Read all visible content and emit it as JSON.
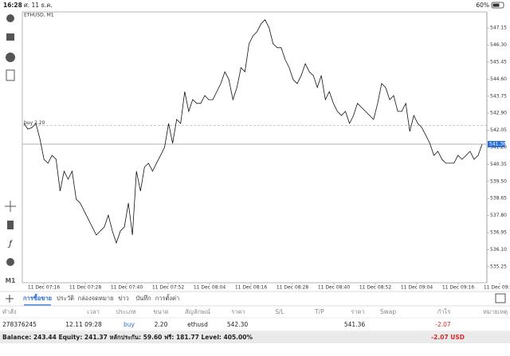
{
  "status_bar": {
    "time": "16:28",
    "date": "ศ. 11 ธ.ค.",
    "battery": "60%"
  },
  "toolbar": {
    "timeframe": "M1"
  },
  "chart_data": {
    "type": "line",
    "title": "ETHUSD, M1",
    "color": "#111111",
    "values": [
      542.39,
      542.11,
      542.19,
      542.39,
      541.6,
      540.6,
      540.41,
      540.8,
      540.6,
      539.02,
      540.01,
      539.61,
      540.01,
      538.62,
      538.42,
      538.02,
      537.63,
      537.23,
      536.83,
      537.03,
      537.23,
      537.82,
      537.03,
      536.43,
      537.03,
      537.23,
      538.42,
      536.83,
      540.01,
      539.02,
      540.21,
      540.41,
      540.01,
      540.41,
      540.8,
      541.2,
      542.39,
      541.4,
      542.59,
      542.39,
      543.98,
      542.99,
      543.58,
      543.39,
      543.39,
      543.78,
      543.58,
      543.58,
      543.98,
      544.38,
      544.97,
      544.58,
      543.58,
      544.18,
      545.17,
      544.97,
      546.36,
      546.76,
      546.96,
      547.36,
      547.56,
      547.16,
      546.36,
      546.17,
      546.17,
      545.57,
      545.17,
      544.58,
      544.38,
      544.78,
      545.37,
      544.97,
      544.78,
      544.18,
      544.78,
      543.58,
      543.98,
      543.39,
      542.99,
      542.79,
      542.99,
      542.39,
      542.79,
      543.39,
      543.19,
      542.99,
      542.79,
      542.59,
      543.39,
      544.38,
      544.18,
      543.58,
      543.78,
      542.99,
      542.99,
      543.39,
      541.99,
      542.79,
      542.39,
      542.19,
      541.8,
      541.4,
      540.8,
      541.0,
      540.6,
      540.41,
      540.41,
      540.41,
      540.8,
      540.6,
      540.8,
      541.0,
      540.6,
      540.8,
      541.36
    ],
    "ylim": [
      534.45,
      547.95
    ],
    "yticks": [
      547.15,
      {
        "value": 546.3,
        "label": "546.30"
      },
      545.45,
      {
        "value": 544.6,
        "label": "544.60"
      },
      543.75,
      {
        "value": 542.9,
        "label": "542.90"
      },
      542.05,
      {
        "value": 541.2,
        "label": "541.20"
      },
      540.35,
      {
        "value": 539.5,
        "label": "539.50"
      },
      538.65,
      {
        "value": 537.8,
        "label": "537.80"
      },
      536.95,
      {
        "value": 536.1,
        "label": "536.10"
      },
      535.25
    ],
    "x_tick_labels": [
      "11 Dec 07:16",
      "11 Dec 07:28",
      "11 Dec 07:40",
      "11 Dec 07:52",
      "11 Dec 08:04",
      "11 Dec 08:16",
      "11 Dec 08:28",
      "11 Dec 08:40",
      "11 Dec 08:52",
      "11 Dec 09:04",
      "11 Dec 09:16",
      "11 Dec 09:28"
    ],
    "trade_line": {
      "label": "buy 2.20",
      "value": 542.3
    },
    "bid": 541.36,
    "grid": false
  },
  "tabs": [
    "การซื้อขาย",
    "ประวัติ",
    "กล่องจดหมาย",
    "ข่าว",
    "บันทึก",
    "การตั้งค่า"
  ],
  "active_tab": 0,
  "table": {
    "headers": [
      "คำสั่ง",
      "เวลา",
      "ประเภท",
      "ขนาด",
      "สัญลักษณ์",
      "ราคา",
      "S/L",
      "T/P",
      "ราคา",
      "Swap",
      "กำไร",
      "หมายเหตุ"
    ],
    "row": {
      "order": "278376245",
      "time": "12.11 09:28",
      "type": "buy",
      "volume": "2.20",
      "symbol": "ethusd",
      "price_open": "542.30",
      "price_current": "541.36",
      "profit": "-2.07"
    }
  },
  "footer": {
    "summary": "Balance: 243.44 Equity: 241.37 หลักประกัน: 59.60 ฟรี: 181.77 Level: 405.00%",
    "profit_total": "-2.07 USD"
  }
}
